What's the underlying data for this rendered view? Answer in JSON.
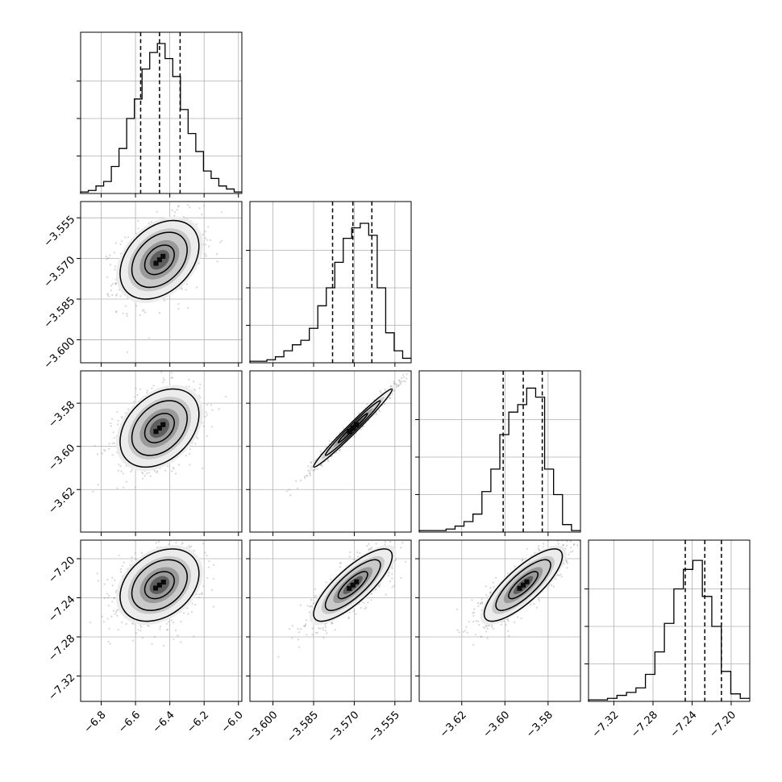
{
  "chart_data": {
    "type": "corner",
    "n_params": 4,
    "colors": {
      "hist": "#000000",
      "scatter": "#8a8a8a",
      "contour": "#000000"
    },
    "grid": true,
    "quantile_lines": "dashed",
    "params": [
      {
        "range": [
          -6.92,
          -5.98
        ],
        "ticks": [
          "−6.8",
          "−6.6",
          "−6.4",
          "−6.2",
          "−6.0"
        ],
        "tick_values": [
          -6.8,
          -6.6,
          -6.4,
          -6.2,
          -6.0
        ],
        "quantiles": [
          -6.57,
          -6.46,
          -6.34
        ],
        "hist": [
          0.01,
          0.02,
          0.05,
          0.08,
          0.18,
          0.3,
          0.5,
          0.63,
          0.83,
          0.94,
          1.0,
          0.9,
          0.78,
          0.56,
          0.4,
          0.28,
          0.15,
          0.1,
          0.05,
          0.03,
          0.01
        ]
      },
      {
        "range": [
          -3.6085,
          -3.549
        ],
        "ticks": [
          "−3.600",
          "−3.585",
          "−3.570",
          "−3.555"
        ],
        "tick_values": [
          -3.6,
          -3.585,
          -3.57,
          -3.555
        ],
        "quantiles": [
          -3.578,
          -3.5705,
          -3.5635
        ],
        "hist": [
          0.01,
          0.01,
          0.02,
          0.04,
          0.08,
          0.12,
          0.15,
          0.23,
          0.38,
          0.5,
          0.67,
          0.83,
          0.9,
          0.93,
          0.85,
          0.5,
          0.2,
          0.08,
          0.03
        ]
      },
      {
        "range": [
          -3.6397,
          -3.565
        ],
        "ticks": [
          "−3.62",
          "−3.60",
          "−3.58"
        ],
        "tick_values": [
          -3.62,
          -3.6,
          -3.58
        ],
        "quantiles": [
          -3.6008,
          -3.5915,
          -3.5827
        ],
        "hist": [
          0.01,
          0.01,
          0.01,
          0.02,
          0.04,
          0.07,
          0.12,
          0.27,
          0.42,
          0.65,
          0.8,
          0.85,
          0.96,
          0.9,
          0.42,
          0.25,
          0.05,
          0.01
        ]
      },
      {
        "range": [
          -7.346,
          -7.181
        ],
        "ticks": [
          "−7.32",
          "−7.28",
          "−7.24",
          "−7.20"
        ],
        "tick_values": [
          -7.32,
          -7.28,
          -7.24,
          -7.2
        ],
        "quantiles": [
          -7.247,
          -7.227,
          -7.21
        ],
        "hist": [
          0.01,
          0.01,
          0.02,
          0.04,
          0.06,
          0.09,
          0.18,
          0.33,
          0.52,
          0.75,
          0.88,
          0.94,
          0.7,
          0.5,
          0.2,
          0.05,
          0.02
        ]
      }
    ]
  }
}
